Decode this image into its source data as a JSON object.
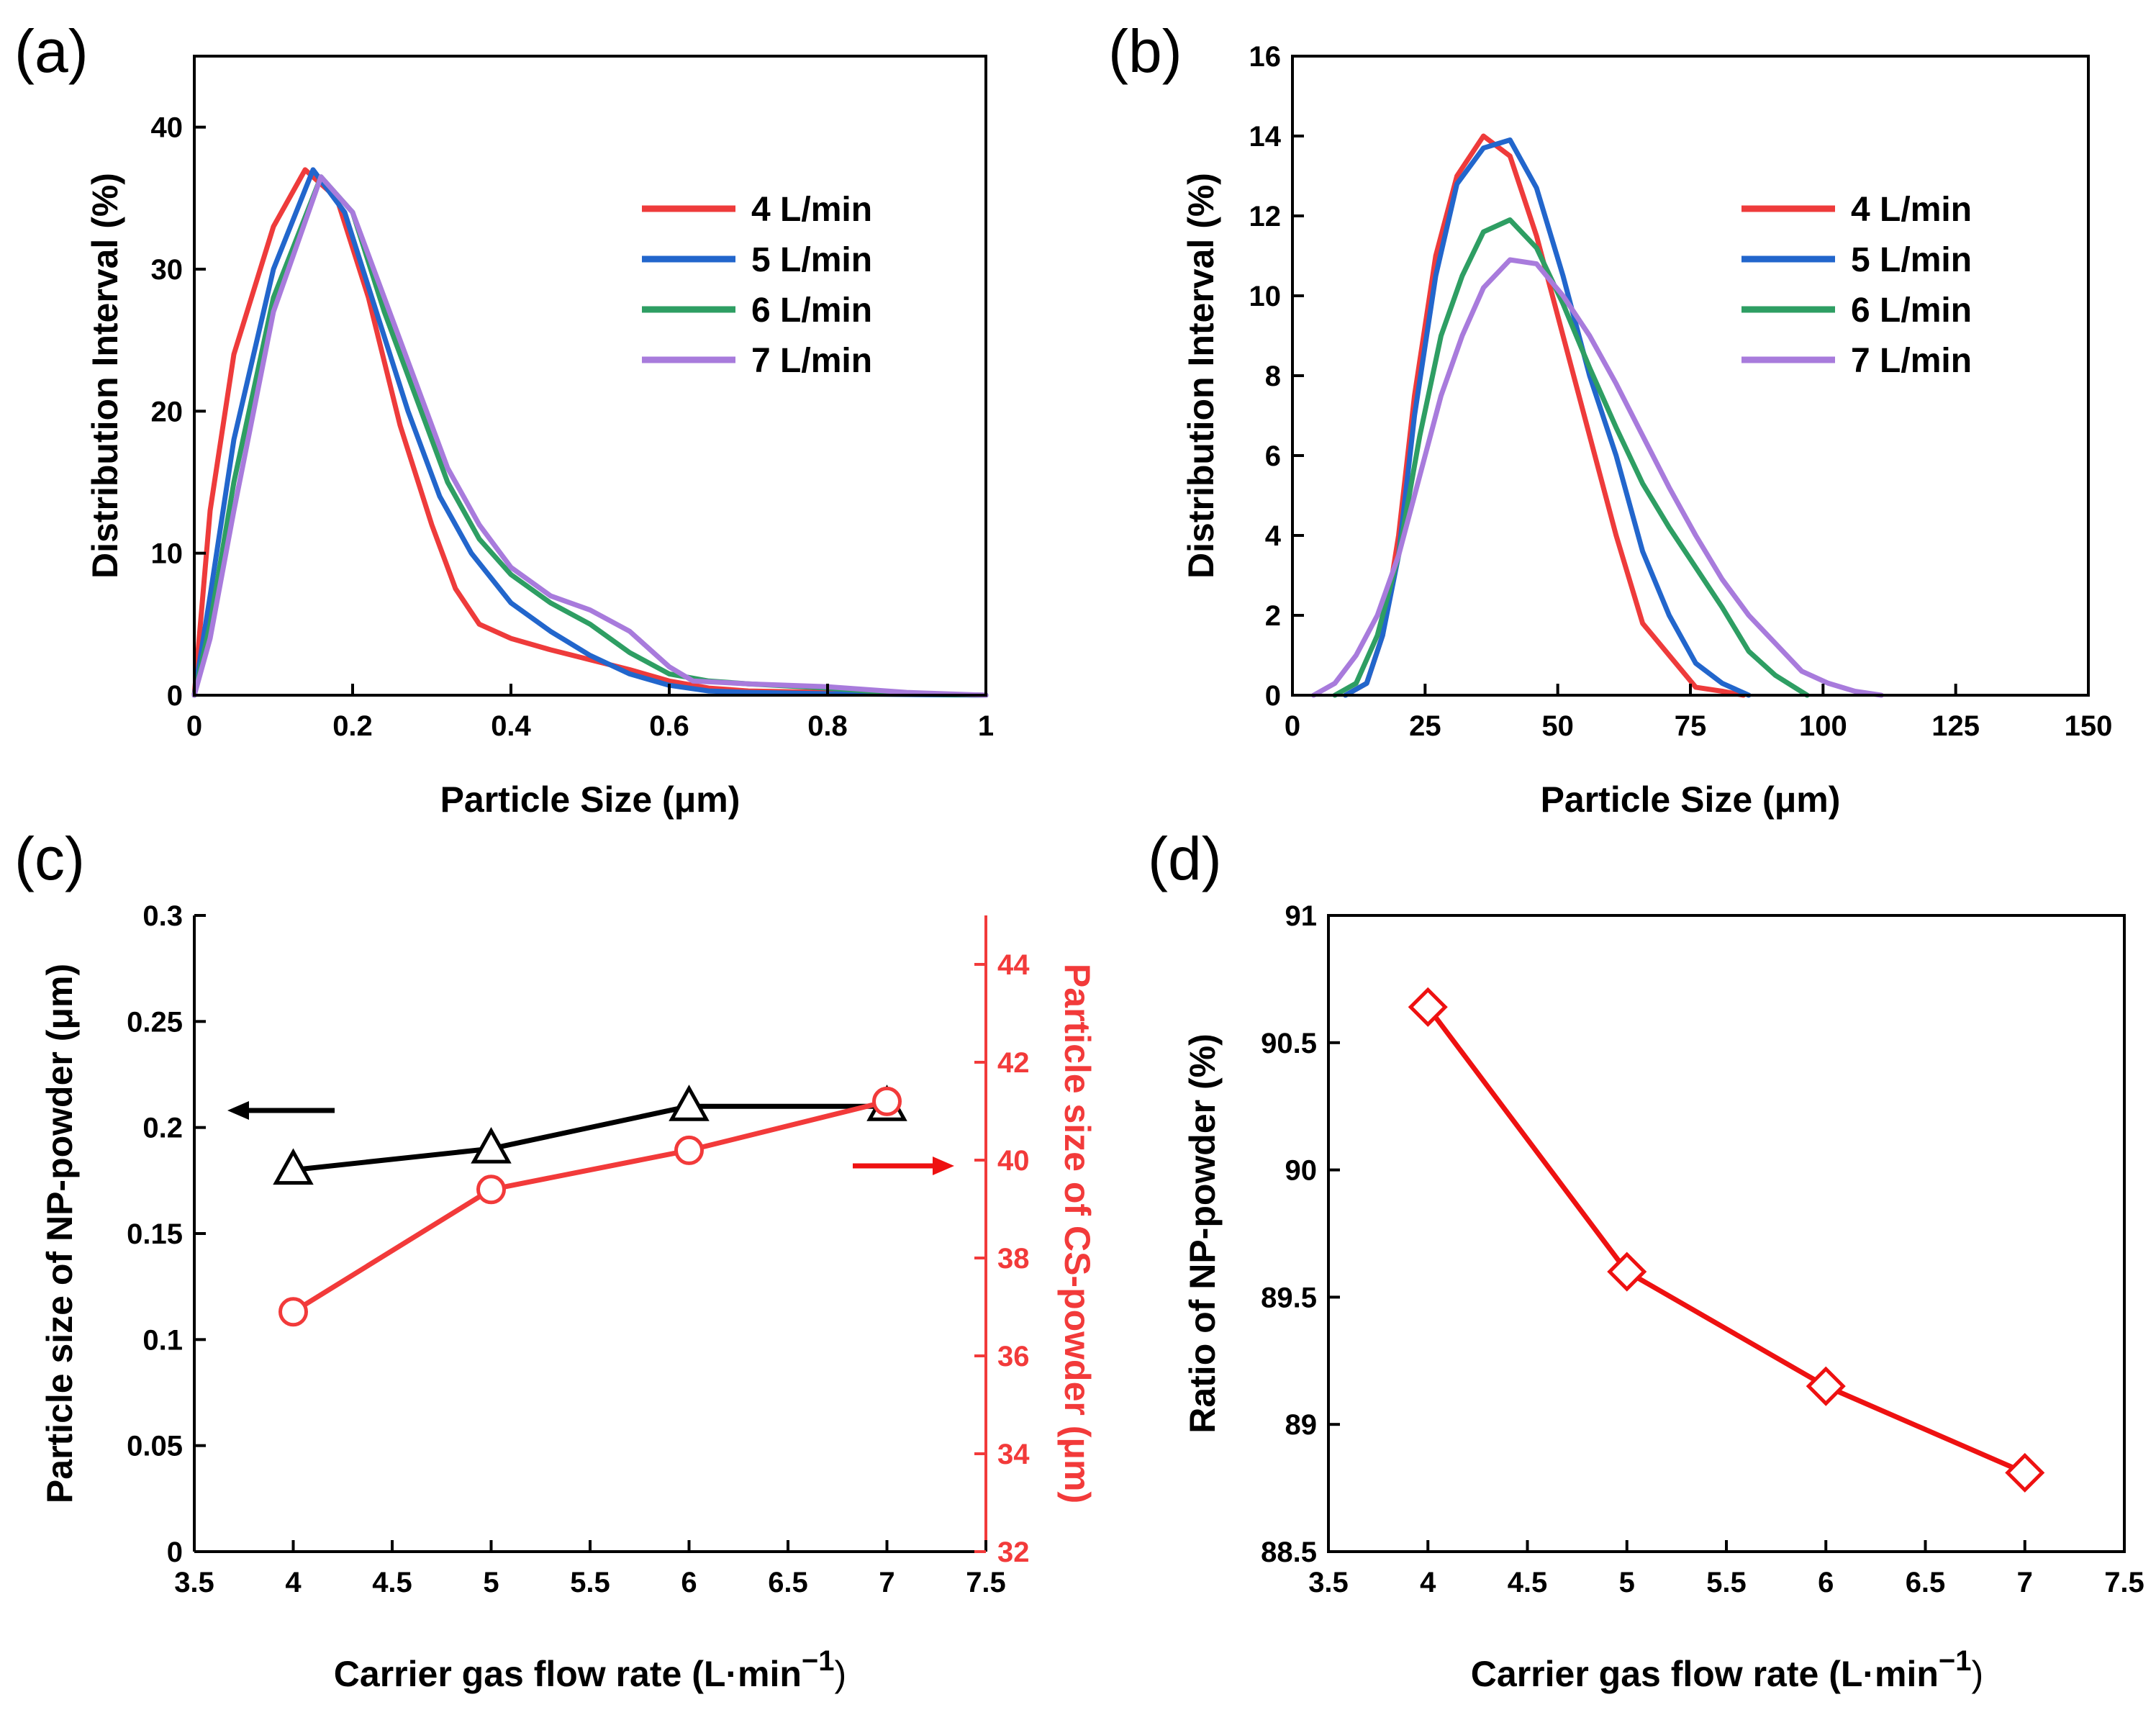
{
  "colors": {
    "red": "#EE3B3B",
    "blue": "#2266CC",
    "green": "#2E9E63",
    "purple": "#A87BDC",
    "black": "#000000",
    "line_red": "#F23A3A",
    "bright_red": "#EE1111"
  },
  "chart_data": [
    {
      "id": "a",
      "panel_label": "(a)",
      "type": "line",
      "xlabel": "Particle Size (μm)",
      "ylabel": "Distribution Interval (%)",
      "xlim": [
        0,
        1
      ],
      "ylim": [
        0,
        45
      ],
      "xticks": [
        0,
        0.2,
        0.4,
        0.6,
        0.8,
        1
      ],
      "xtick_labels": [
        "0",
        "0.2",
        "0.4",
        "0.6",
        "0.8",
        "1"
      ],
      "yticks": [
        0,
        10,
        20,
        30,
        40
      ],
      "ytick_labels": [
        "0",
        "10",
        "20",
        "30",
        "40"
      ],
      "legend": "top-right",
      "series": [
        {
          "name": "4 L/min",
          "color": "#EE3B3B",
          "x": [
            0,
            0.02,
            0.05,
            0.1,
            0.14,
            0.18,
            0.22,
            0.26,
            0.3,
            0.33,
            0.36,
            0.4,
            0.45,
            0.5,
            0.55,
            0.6,
            0.65,
            0.7,
            0.8,
            0.9,
            1.0
          ],
          "y": [
            0,
            13,
            24,
            33,
            37,
            35,
            28,
            19,
            12,
            7.5,
            5,
            4,
            3.2,
            2.5,
            1.8,
            1.0,
            0.5,
            0.3,
            0.2,
            0.1,
            0
          ]
        },
        {
          "name": "5 L/min",
          "color": "#2266CC",
          "x": [
            0,
            0.02,
            0.05,
            0.1,
            0.15,
            0.19,
            0.23,
            0.27,
            0.31,
            0.35,
            0.4,
            0.45,
            0.5,
            0.55,
            0.6,
            0.65,
            0.7,
            0.8,
            0.9,
            1.0
          ],
          "y": [
            0,
            7,
            18,
            30,
            37,
            34,
            27,
            20,
            14,
            10,
            6.5,
            4.5,
            2.8,
            1.5,
            0.7,
            0.3,
            0.2,
            0.1,
            0.05,
            0
          ]
        },
        {
          "name": "6 L/min",
          "color": "#2E9E63",
          "x": [
            0,
            0.02,
            0.05,
            0.1,
            0.16,
            0.2,
            0.24,
            0.28,
            0.32,
            0.36,
            0.4,
            0.45,
            0.5,
            0.55,
            0.6,
            0.65,
            0.7,
            0.8,
            0.9,
            1.0
          ],
          "y": [
            0,
            5,
            15,
            28,
            36.5,
            34,
            27,
            21,
            15,
            11,
            8.5,
            6.5,
            5,
            3,
            1.5,
            1,
            0.8,
            0.5,
            0.1,
            0
          ]
        },
        {
          "name": "7 L/min",
          "color": "#A87BDC",
          "x": [
            0,
            0.02,
            0.05,
            0.1,
            0.16,
            0.2,
            0.24,
            0.28,
            0.32,
            0.36,
            0.4,
            0.45,
            0.5,
            0.55,
            0.6,
            0.63,
            0.7,
            0.8,
            0.9,
            1.0
          ],
          "y": [
            0,
            4,
            13,
            27,
            36.5,
            34,
            28,
            22,
            16,
            12,
            9,
            7,
            6,
            4.5,
            2,
            1,
            0.8,
            0.6,
            0.2,
            0
          ]
        }
      ]
    },
    {
      "id": "b",
      "panel_label": "(b)",
      "type": "line",
      "xlabel": "Particle Size (μm)",
      "ylabel": "Distribution Interval (%)",
      "xlim": [
        0,
        150
      ],
      "ylim": [
        0,
        16
      ],
      "xticks": [
        0,
        25,
        50,
        75,
        100,
        125,
        150
      ],
      "xtick_labels": [
        "0",
        "25",
        "50",
        "75",
        "100",
        "125",
        "150"
      ],
      "yticks": [
        0,
        2,
        4,
        6,
        8,
        10,
        12,
        14,
        16
      ],
      "ytick_labels": [
        "0",
        "2",
        "4",
        "6",
        "8",
        "10",
        "12",
        "14",
        "16"
      ],
      "legend": "top-right",
      "series": [
        {
          "name": "4 L/min",
          "color": "#EE3B3B",
          "x": [
            10,
            14,
            17,
            20,
            23,
            27,
            31,
            36,
            41,
            46,
            51,
            56,
            61,
            66,
            71,
            76,
            81,
            85
          ],
          "y": [
            0,
            0.3,
            1.5,
            4,
            7.5,
            11,
            13,
            14,
            13.5,
            11.5,
            9,
            6.5,
            4,
            1.8,
            1,
            0.2,
            0.1,
            0
          ]
        },
        {
          "name": "5 L/min",
          "color": "#2266CC",
          "x": [
            10,
            14,
            17,
            20,
            23,
            27,
            31,
            36,
            41,
            46,
            51,
            56,
            61,
            66,
            71,
            76,
            81,
            86
          ],
          "y": [
            0,
            0.3,
            1.5,
            3.5,
            7,
            10.5,
            12.8,
            13.7,
            13.9,
            12.7,
            10.5,
            8,
            6,
            3.6,
            2,
            0.8,
            0.3,
            0
          ]
        },
        {
          "name": "6 L/min",
          "color": "#2E9E63",
          "x": [
            8,
            12,
            16,
            20,
            24,
            28,
            32,
            36,
            41,
            46,
            51,
            56,
            61,
            66,
            71,
            76,
            81,
            86,
            91,
            97
          ],
          "y": [
            0,
            0.3,
            1.5,
            3.5,
            6.5,
            9,
            10.5,
            11.6,
            11.9,
            11.2,
            9.8,
            8.2,
            6.7,
            5.3,
            4.2,
            3.2,
            2.2,
            1.1,
            0.5,
            0
          ]
        },
        {
          "name": "7 L/min",
          "color": "#A87BDC",
          "x": [
            4,
            8,
            12,
            16,
            20,
            24,
            28,
            32,
            36,
            41,
            46,
            51,
            56,
            61,
            66,
            71,
            76,
            81,
            86,
            91,
            96,
            101,
            106,
            111
          ],
          "y": [
            0,
            0.3,
            1,
            2,
            3.5,
            5.5,
            7.5,
            9,
            10.2,
            10.9,
            10.8,
            10,
            9,
            7.8,
            6.5,
            5.2,
            4,
            2.9,
            2,
            1.3,
            0.6,
            0.3,
            0.1,
            0
          ]
        }
      ]
    },
    {
      "id": "c",
      "panel_label": "(c)",
      "type": "line",
      "xlabel_main": "Carrier gas flow rate (L·min",
      "xlabel_sup": "−1",
      "xlabel_close": ")",
      "ylabel": "Particle size of NP-powder (μm)",
      "ylabel_right": "Particle size of CS-powder (μm)",
      "xlim": [
        3.5,
        7.5
      ],
      "ylim": [
        0,
        0.3
      ],
      "ylim_right": [
        32,
        45
      ],
      "xticks": [
        3.5,
        4,
        4.5,
        5,
        5.5,
        6,
        6.5,
        7,
        7.5
      ],
      "xtick_labels": [
        "3.5",
        "4",
        "4.5",
        "5",
        "5.5",
        "6",
        "6.5",
        "7",
        "7.5"
      ],
      "yticks": [
        0,
        0.05,
        0.1,
        0.15,
        0.2,
        0.25,
        0.3
      ],
      "ytick_labels": [
        "0",
        "0.05",
        "0.1",
        "0.15",
        "0.2",
        "0.25",
        "0.3"
      ],
      "yticks_right": [
        32,
        34,
        36,
        38,
        40,
        42,
        44
      ],
      "ytick_labels_right": [
        "32",
        "34",
        "36",
        "38",
        "40",
        "42",
        "44"
      ],
      "series": [
        {
          "axis": "left",
          "marker": "triangle",
          "color": "#000000",
          "x": [
            4,
            5,
            6,
            7
          ],
          "y": [
            0.18,
            0.19,
            0.21,
            0.21
          ]
        },
        {
          "axis": "right",
          "marker": "circle",
          "color": "#F23A3A",
          "x": [
            4,
            5,
            6,
            7
          ],
          "y": [
            36.9,
            39.4,
            40.2,
            41.2
          ]
        }
      ]
    },
    {
      "id": "d",
      "panel_label": "(d)",
      "type": "line",
      "xlabel_main": "Carrier gas flow rate (L·min",
      "xlabel_sup": "−1",
      "xlabel_close": ")",
      "ylabel": "Ratio of NP-powder (%)",
      "xlim": [
        3.5,
        7.5
      ],
      "ylim": [
        88.5,
        91
      ],
      "xticks": [
        3.5,
        4,
        4.5,
        5,
        5.5,
        6,
        6.5,
        7,
        7.5
      ],
      "xtick_labels": [
        "3.5",
        "4",
        "4.5",
        "5",
        "5.5",
        "6",
        "6.5",
        "7",
        "7.5"
      ],
      "yticks": [
        88.5,
        89,
        89.5,
        90,
        90.5,
        91
      ],
      "ytick_labels": [
        "88.5",
        "89",
        "89.5",
        "90",
        "90.5",
        "91"
      ],
      "series": [
        {
          "marker": "diamond",
          "color": "#EE1111",
          "x": [
            4,
            5,
            6,
            7
          ],
          "y": [
            90.64,
            89.6,
            89.15,
            88.81
          ]
        }
      ]
    }
  ]
}
